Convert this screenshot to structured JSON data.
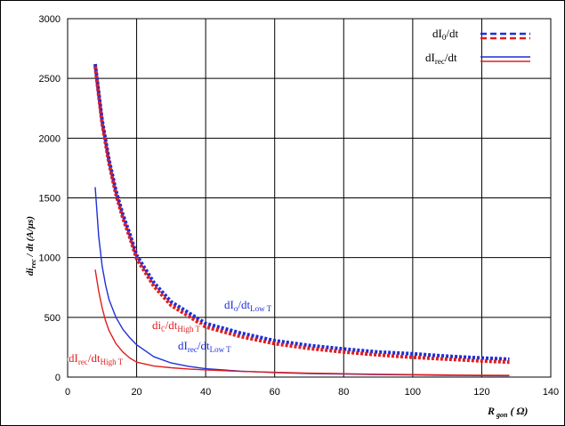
{
  "chart_data": {
    "type": "line",
    "ylabel": {
      "main": "di",
      "sub": "rec",
      "rest": " / dt (A/µs)"
    },
    "xlabel": {
      "main": "R",
      "sub": " gon",
      "rest": " ( Ω)"
    },
    "xlim": [
      0,
      140
    ],
    "ylim": [
      0,
      3000
    ],
    "xticks": [
      "0",
      "20",
      "40",
      "60",
      "80",
      "100",
      "120",
      "140"
    ],
    "yticks": [
      "0",
      "500",
      "1000",
      "1500",
      "2000",
      "2500",
      "3000"
    ],
    "grid": true,
    "legend_position": "top-right",
    "legend": [
      {
        "main": "dI",
        "sub": "0",
        "rest": "/dt",
        "style": "dashed"
      },
      {
        "main": "dI",
        "sub": "rec",
        "rest": "/dt",
        "style": "solid"
      }
    ],
    "annotations": [
      {
        "main": "dI",
        "sub": "o",
        "rest": "/dt",
        "sub2": "Low T",
        "color": "#1f2fd8"
      },
      {
        "main": "di",
        "sub": "0",
        "rest": "/dt",
        "sub2": "High T",
        "color": "#e01e1e"
      },
      {
        "main": "dI",
        "sub": "rec",
        "rest": "/dt",
        "sub2": "Low T",
        "color": "#1f2fd8"
      },
      {
        "main": "dI",
        "sub": "rec",
        "rest": "/dt",
        "sub2": "High T",
        "color": "#e01e1e"
      }
    ],
    "series": [
      {
        "name": "dIo/dt Low T",
        "color": "#1f2fd8",
        "style": "dashed",
        "x": [
          8,
          10,
          12,
          14,
          16,
          18,
          20,
          25,
          30,
          35,
          40,
          50,
          60,
          70,
          80,
          90,
          100,
          110,
          120,
          128
        ],
        "y": [
          2620,
          2150,
          1820,
          1560,
          1360,
          1200,
          1020,
          790,
          630,
          540,
          450,
          370,
          305,
          265,
          235,
          210,
          195,
          175,
          160,
          150
        ]
      },
      {
        "name": "dIo/dt High T",
        "color": "#e01e1e",
        "style": "dashed",
        "x": [
          8,
          10,
          12,
          14,
          16,
          18,
          20,
          25,
          30,
          35,
          40,
          50,
          60,
          70,
          80,
          90,
          100,
          110,
          120,
          128
        ],
        "y": [
          2600,
          2120,
          1790,
          1530,
          1330,
          1170,
          990,
          760,
          600,
          510,
          420,
          340,
          280,
          240,
          210,
          185,
          165,
          150,
          135,
          125
        ]
      },
      {
        "name": "dIrec/dt Low T",
        "color": "#1f2fd8",
        "style": "solid",
        "x": [
          8,
          9,
          10,
          11,
          12,
          14,
          16,
          18,
          20,
          25,
          30,
          35,
          40,
          50,
          60,
          70,
          80,
          90,
          100,
          110,
          120,
          128
        ],
        "y": [
          1590,
          1180,
          930,
          770,
          650,
          500,
          400,
          330,
          270,
          170,
          118,
          90,
          70,
          50,
          38,
          30,
          25,
          21,
          18,
          15,
          13,
          12
        ]
      },
      {
        "name": "dIrec/dt High T",
        "color": "#e01e1e",
        "style": "solid",
        "x": [
          8,
          9,
          10,
          11,
          12,
          14,
          16,
          18,
          20,
          25,
          30,
          35,
          40,
          50,
          60,
          70,
          80,
          90,
          100,
          110,
          120,
          128
        ],
        "y": [
          900,
          720,
          580,
          470,
          390,
          280,
          210,
          160,
          125,
          92,
          78,
          68,
          60,
          48,
          40,
          33,
          28,
          24,
          21,
          18,
          16,
          14
        ]
      }
    ]
  }
}
